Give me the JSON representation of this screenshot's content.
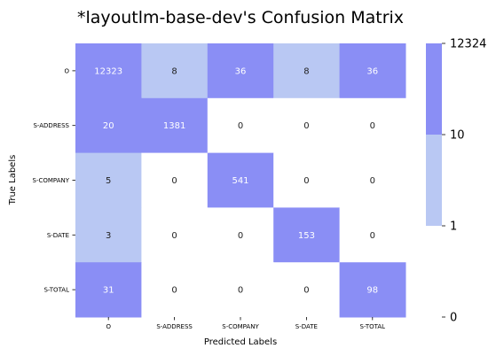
{
  "chart_data": {
    "type": "heatmap",
    "title": "*layoutlm-base-dev's Confusion Matrix",
    "xlabel": "Predicted Labels",
    "ylabel": "True Labels",
    "x_categories": [
      "O",
      "S-ADDRESS",
      "S-COMPANY",
      "S-DATE",
      "S-TOTAL"
    ],
    "y_categories": [
      "O",
      "S-ADDRESS",
      "S-COMPANY",
      "S-DATE",
      "S-TOTAL"
    ],
    "values": [
      [
        12323,
        8,
        36,
        8,
        36
      ],
      [
        20,
        1381,
        0,
        0,
        0
      ],
      [
        5,
        0,
        541,
        0,
        0
      ],
      [
        3,
        0,
        0,
        153,
        0
      ],
      [
        31,
        0,
        0,
        0,
        98
      ]
    ],
    "colorbar": {
      "ticks": [
        "12324",
        "10",
        "1",
        "0"
      ],
      "bins": [
        {
          "from": 0,
          "to": 1,
          "color": "#ffffff"
        },
        {
          "from": 1,
          "to": 10,
          "color": "#b9c8f3"
        },
        {
          "from": 10,
          "to": 12324,
          "color": "#8a8ef5"
        }
      ]
    },
    "colors": {
      "low": "#b9c8f3",
      "high": "#8a8ef5",
      "zero": "#ffffff",
      "text_on_dark": "#ffffff",
      "text_on_light": "#222222"
    }
  }
}
